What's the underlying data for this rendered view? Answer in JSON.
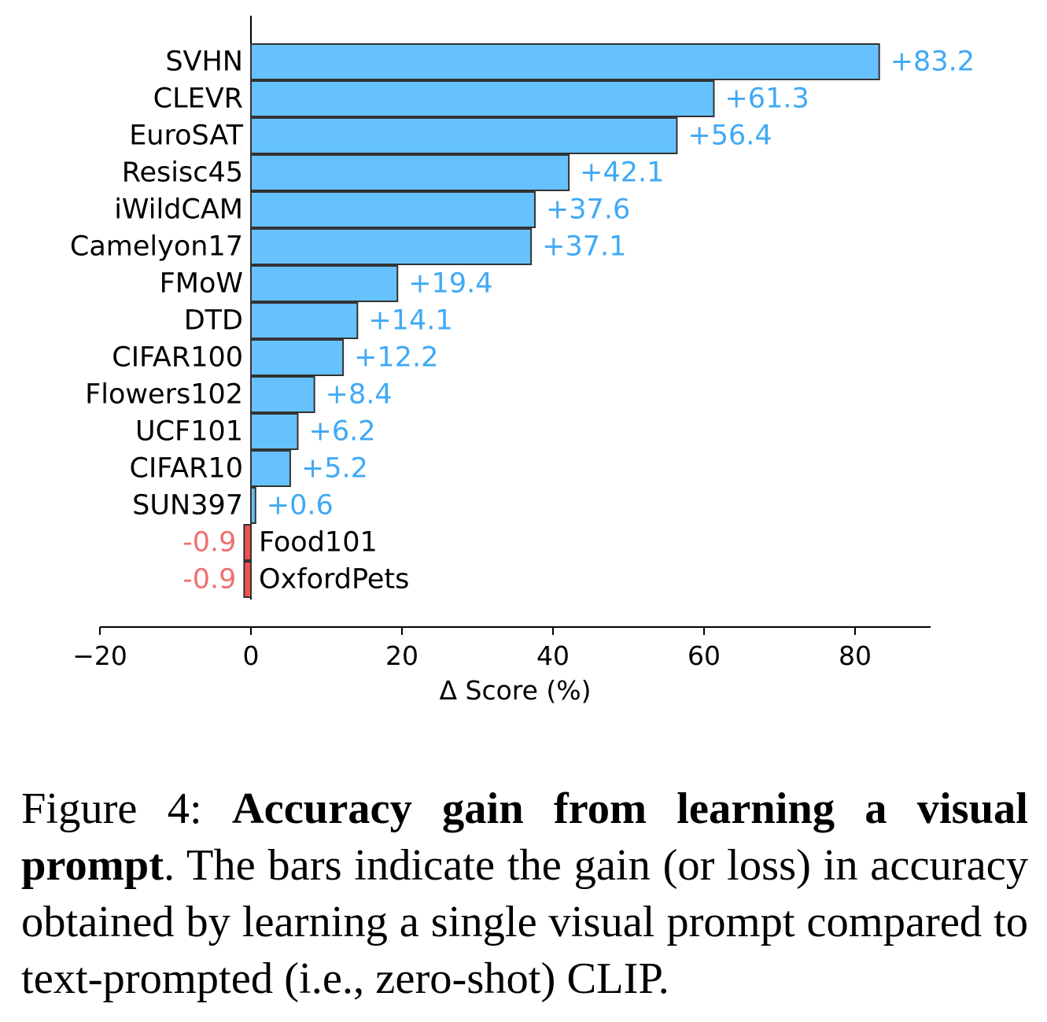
{
  "chart_data": {
    "type": "bar",
    "orientation": "horizontal",
    "categories": [
      "SVHN",
      "CLEVR",
      "EuroSAT",
      "Resisc45",
      "iWildCAM",
      "Camelyon17",
      "FMoW",
      "DTD",
      "CIFAR100",
      "Flowers102",
      "UCF101",
      "CIFAR10",
      "SUN397",
      "Food101",
      "OxfordPets"
    ],
    "values": [
      83.2,
      61.3,
      56.4,
      42.1,
      37.6,
      37.1,
      19.4,
      14.1,
      12.2,
      8.4,
      6.2,
      5.2,
      0.6,
      -0.9,
      -0.9
    ],
    "value_labels": [
      "+83.2",
      "+61.3",
      "+56.4",
      "+42.1",
      "+37.6",
      "+37.1",
      "+19.4",
      "+14.1",
      "+12.2",
      "+8.4",
      "+6.2",
      "+5.2",
      "+0.6",
      "-0.9",
      "-0.9"
    ],
    "xlabel": "Δ Score (%)",
    "ylabel": "",
    "xlim": [
      -20,
      90
    ],
    "xticks": [
      -20,
      0,
      20,
      40,
      60,
      80
    ],
    "xtick_labels": [
      "−20",
      "0",
      "20",
      "40",
      "60",
      "80"
    ],
    "colors": {
      "positive_bar": "#66c2ff",
      "negative_bar": "#f0524f",
      "positive_label": "#3fa9f5",
      "negative_label": "#f07070",
      "bar_edge": "#333333"
    },
    "grid": false
  },
  "caption": {
    "figure_label": "Figure 4:",
    "bold_title": "Accuracy gain from learning a visual prompt",
    "body": ". The bars indicate the gain (or loss) in accuracy obtained by learning a single visual prompt compared to text-prompted (i.e., zero-shot) CLIP."
  }
}
